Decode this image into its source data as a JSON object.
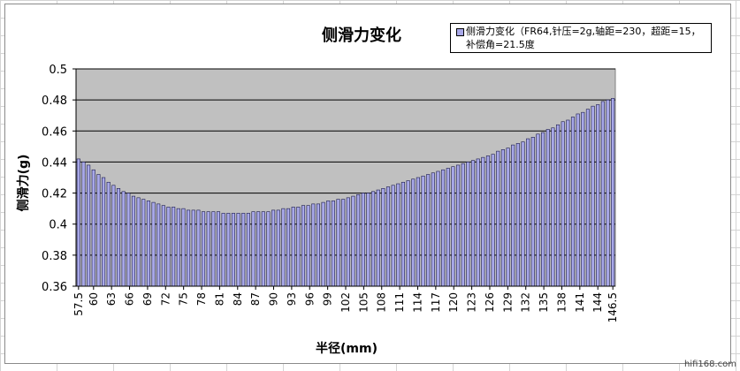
{
  "chart_data": {
    "type": "bar",
    "title": "侧滑力变化",
    "xlabel": "半径(mm)",
    "ylabel": "侧滑力(g)",
    "ylim": [
      0.36,
      0.5
    ],
    "yticks": [
      "0.36",
      "0.38",
      "0.4",
      "0.42",
      "0.44",
      "0.46",
      "0.48",
      "0.5"
    ],
    "grid": true,
    "legend_position": "top-right",
    "series": [
      {
        "name": "侧滑力变化（FR64,针压=2g,轴距=230，超距=15，补偿角=21.5度",
        "color": "#a8a8e8",
        "values": [
          0.442,
          0.44,
          0.438,
          0.435,
          0.432,
          0.43,
          0.427,
          0.425,
          0.423,
          0.421,
          0.42,
          0.418,
          0.417,
          0.416,
          0.415,
          0.414,
          0.413,
          0.412,
          0.411,
          0.411,
          0.41,
          0.41,
          0.409,
          0.409,
          0.409,
          0.408,
          0.408,
          0.408,
          0.408,
          0.407,
          0.407,
          0.407,
          0.407,
          0.407,
          0.407,
          0.408,
          0.408,
          0.408,
          0.408,
          0.409,
          0.409,
          0.41,
          0.41,
          0.411,
          0.411,
          0.412,
          0.412,
          0.413,
          0.413,
          0.414,
          0.415,
          0.415,
          0.416,
          0.416,
          0.417,
          0.418,
          0.419,
          0.42,
          0.42,
          0.421,
          0.422,
          0.423,
          0.424,
          0.425,
          0.426,
          0.427,
          0.428,
          0.429,
          0.43,
          0.431,
          0.432,
          0.433,
          0.434,
          0.435,
          0.436,
          0.437,
          0.438,
          0.439,
          0.44,
          0.441,
          0.442,
          0.443,
          0.444,
          0.445,
          0.447,
          0.448,
          0.449,
          0.451,
          0.452,
          0.453,
          0.455,
          0.456,
          0.458,
          0.459,
          0.461,
          0.462,
          0.464,
          0.466,
          0.467,
          0.469,
          0.471,
          0.472,
          0.474,
          0.476,
          0.477,
          0.479,
          0.48,
          0.481
        ]
      }
    ],
    "x_tick_labels": [
      "57.5",
      "60",
      "63",
      "66",
      "69",
      "72",
      "75",
      "78",
      "81",
      "84",
      "87",
      "90",
      "93",
      "96",
      "99",
      "102",
      "105",
      "108",
      "111",
      "114",
      "117",
      "120",
      "123",
      "126",
      "129",
      "132",
      "135",
      "138",
      "141",
      "144",
      "146.5"
    ]
  },
  "colors": {
    "plot_background": "#c0c0c0",
    "bar_fill": "#a8a8e8",
    "bar_stroke": "#1a1a4a",
    "gridline": "#000000"
  },
  "watermark": "hifi168.com"
}
